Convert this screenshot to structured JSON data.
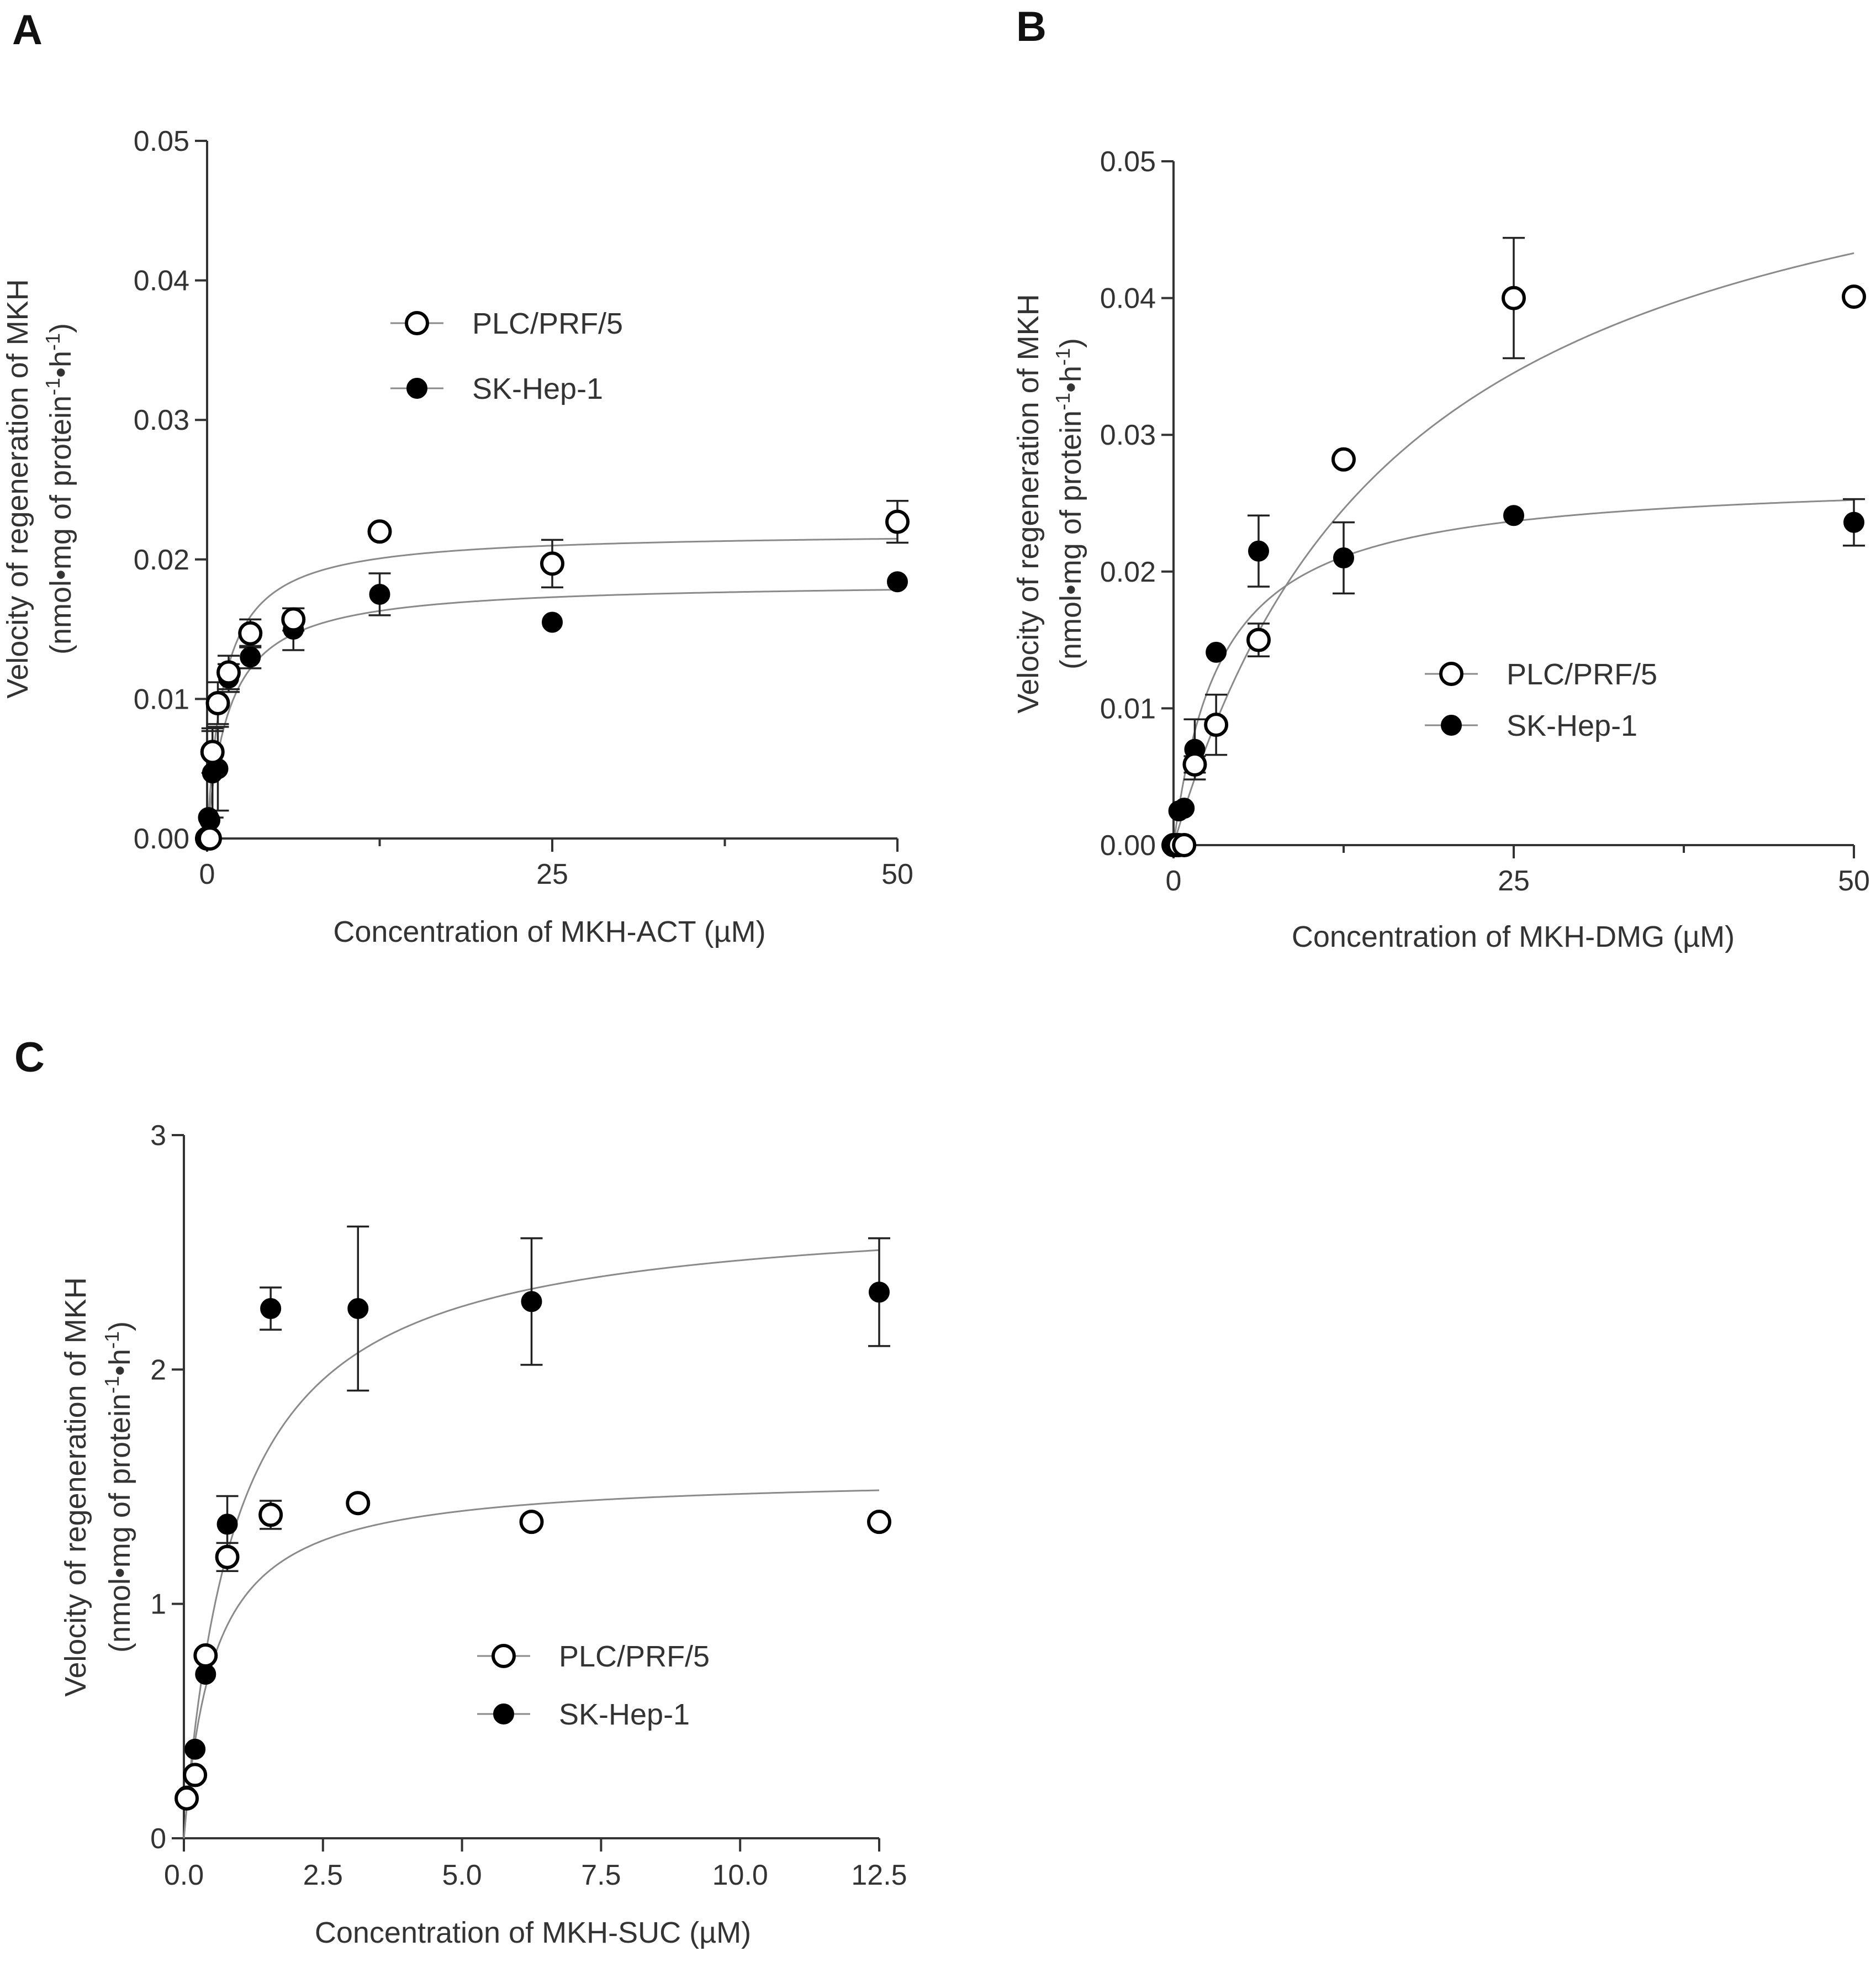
{
  "chart_data": [
    {
      "panel": "A",
      "type": "scatter",
      "title": "",
      "xlabel": "Concentration of MKH-ACT (µM)",
      "ylabel": "Velocity of regeneration of MKH",
      "ylabel2_parts": [
        "(nmol•mg of protein",
        "-1",
        "•h",
        "-1",
        ")"
      ],
      "xlim": [
        0,
        50
      ],
      "ylim": [
        0,
        0.05
      ],
      "xticks": [
        0,
        25,
        50
      ],
      "xtick_labels": [
        "0",
        "25",
        "50"
      ],
      "xminor": [
        12.5,
        37.5
      ],
      "yticks": [
        0,
        0.01,
        0.02,
        0.03,
        0.04,
        0.05
      ],
      "ytick_labels": [
        "0.00",
        "0.01",
        "0.02",
        "0.03",
        "0.04",
        "0.05"
      ],
      "legend": {
        "position": "upper-middle",
        "entries": [
          "PLC/PRF/5",
          "SK-Hep-1"
        ]
      },
      "series": [
        {
          "name": "PLC/PRF/5",
          "marker": "open-circle",
          "x": [
            0,
            0.2,
            0.39,
            0.78,
            1.56,
            3.13,
            6.25,
            12.5,
            25,
            50
          ],
          "y": [
            0.0,
            0.0,
            0.0062,
            0.0097,
            0.0119,
            0.0147,
            0.0157,
            0.022,
            0.0197,
            0.0227
          ],
          "err": [
            0,
            0,
            0.0015,
            0.0015,
            0.0012,
            0.001,
            0.0008,
            0,
            0.0017,
            0.0015
          ],
          "fit": {
            "model": "michaelis-menten",
            "vmax": 0.022,
            "km": 1.2
          }
        },
        {
          "name": "SK-Hep-1",
          "marker": "filled-circle",
          "x": [
            0.1,
            0.2,
            0.39,
            0.78,
            1.56,
            3.13,
            6.25,
            12.5,
            25,
            50
          ],
          "y": [
            0.0015,
            0.0013,
            0.0047,
            0.005,
            0.0115,
            0.013,
            0.015,
            0.0175,
            0.0155,
            0.0184
          ],
          "err": [
            0,
            0,
            0.0032,
            0.003,
            0.001,
            0.0008,
            0.0015,
            0.0015,
            0,
            0
          ],
          "fit": {
            "model": "michaelis-menten",
            "vmax": 0.0184,
            "km": 1.6
          }
        }
      ]
    },
    {
      "panel": "B",
      "type": "scatter",
      "title": "",
      "xlabel": "Concentration of MKH-DMG (µM)",
      "ylabel": "Velocity of regeneration of MKH",
      "ylabel2_parts": [
        "(nmol•mg of protein",
        "-1",
        "•h",
        "-1",
        ")"
      ],
      "xlim": [
        0,
        50
      ],
      "ylim": [
        0,
        0.05
      ],
      "xticks": [
        0,
        25,
        50
      ],
      "xtick_labels": [
        "0",
        "25",
        "50"
      ],
      "xminor": [
        12.5,
        37.5
      ],
      "yticks": [
        0,
        0.01,
        0.02,
        0.03,
        0.04,
        0.05
      ],
      "ytick_labels": [
        "0.00",
        "0.01",
        "0.02",
        "0.03",
        "0.04",
        "0.05"
      ],
      "legend": {
        "position": "center-right",
        "entries": [
          "PLC/PRF/5",
          "SK-Hep-1"
        ]
      },
      "series": [
        {
          "name": "PLC/PRF/5",
          "marker": "open-circle",
          "x": [
            0,
            0.2,
            0.39,
            0.78,
            1.56,
            3.13,
            6.25,
            12.5,
            25,
            50
          ],
          "y": [
            0.0,
            0.0,
            0.0,
            0.0,
            0.0059,
            0.0088,
            0.015,
            0.0282,
            0.04,
            0.0401
          ],
          "err": [
            0,
            0,
            0,
            0,
            0.0006,
            0.0022,
            0.0012,
            0,
            0.0044,
            0
          ],
          "fit": {
            "model": "michaelis-menten",
            "vmax": 0.058,
            "km": 17
          }
        },
        {
          "name": "SK-Hep-1",
          "marker": "filled-circle",
          "x": [
            0,
            0.39,
            0.78,
            1.56,
            3.13,
            6.25,
            12.5,
            25,
            50
          ],
          "y": [
            0.0,
            0.0025,
            0.0027,
            0.007,
            0.0141,
            0.0215,
            0.021,
            0.0241,
            0.0236
          ],
          "err": [
            0,
            0,
            0,
            0.0022,
            0,
            0.0026,
            0.0026,
            0,
            0.0017
          ],
          "fit": {
            "model": "michaelis-menten",
            "vmax": 0.027,
            "km": 3.5
          }
        }
      ]
    },
    {
      "panel": "C",
      "type": "scatter",
      "title": "",
      "xlabel": "Concentration of MKH-SUC (µM)",
      "ylabel": "Velocity of regeneration of MKH",
      "ylabel2_parts": [
        "(nmol•mg of protein",
        "-1",
        "•h",
        "-1",
        ")"
      ],
      "xlim": [
        0,
        12.5
      ],
      "ylim": [
        0,
        3
      ],
      "xticks": [
        0,
        2.5,
        5,
        7.5,
        10,
        12.5
      ],
      "xtick_labels": [
        "0.0",
        "2.5",
        "5.0",
        "7.5",
        "10.0",
        "12.5"
      ],
      "xminor": [],
      "yticks": [
        0,
        1,
        2,
        3
      ],
      "ytick_labels": [
        "0",
        "1",
        "2",
        "3"
      ],
      "legend": {
        "position": "lower-middle",
        "entries": [
          "PLC/PRF/5",
          "SK-Hep-1"
        ]
      },
      "series": [
        {
          "name": "PLC/PRF/5",
          "marker": "open-circle",
          "x": [
            0.05,
            0.2,
            0.39,
            0.78,
            1.56,
            3.13,
            6.25,
            12.5
          ],
          "y": [
            0.17,
            0.27,
            0.78,
            1.2,
            1.38,
            1.43,
            1.35,
            1.35
          ],
          "err": [
            0,
            0,
            0,
            0.06,
            0.06,
            0,
            0,
            0
          ],
          "fit": {
            "model": "michaelis-menten",
            "vmax": 1.55,
            "km": 0.55
          }
        },
        {
          "name": "SK-Hep-1",
          "marker": "filled-circle",
          "x": [
            0.05,
            0.2,
            0.39,
            0.78,
            1.56,
            3.13,
            6.25,
            12.5
          ],
          "y": [
            0.18,
            0.38,
            0.7,
            1.34,
            2.26,
            2.26,
            2.29,
            2.33
          ],
          "err": [
            0,
            0,
            0,
            0.12,
            0.09,
            0.35,
            0.27,
            0.23
          ],
          "fit": {
            "model": "michaelis-menten",
            "vmax": 2.7,
            "km": 0.95
          }
        }
      ]
    }
  ]
}
